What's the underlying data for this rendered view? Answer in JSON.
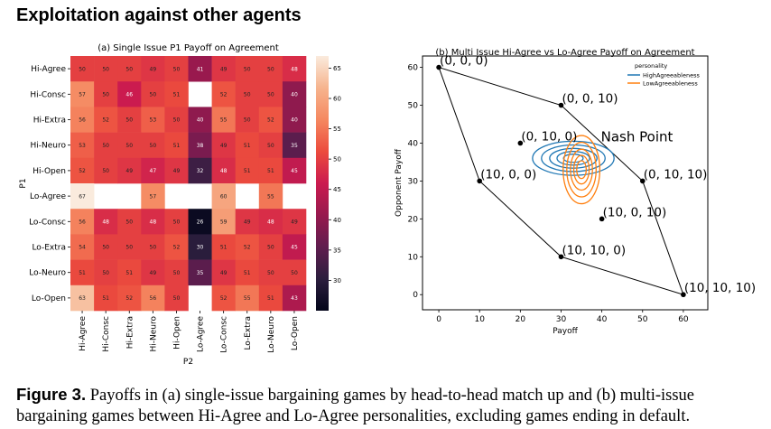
{
  "heading": "Exploitation against other agents",
  "caption": {
    "label": "Figure 3.",
    "text": "Payoffs in (a) single-issue bargaining games by head-to-head match up and (b) multi-issue bargaining games between Hi-Agree and Lo-Agree personalities, excluding games ending in default."
  },
  "chart_data": [
    {
      "type": "heatmap",
      "title": "(a) Single Issue P1 Payoff on Agreement",
      "xlabel": "P2",
      "ylabel": "P1",
      "rows": [
        "Hi-Agree",
        "Hi-Consc",
        "Hi-Extra",
        "Hi-Neuro",
        "Hi-Open",
        "Lo-Agree",
        "Lo-Consc",
        "Lo-Extra",
        "Lo-Neuro",
        "Lo-Open"
      ],
      "cols": [
        "Hi-Agree",
        "Hi-Consc",
        "Hi-Extra",
        "Hi-Neuro",
        "Hi-Open",
        "Lo-Agree",
        "Lo-Consc",
        "Lo-Extra",
        "Lo-Neuro",
        "Lo-Open"
      ],
      "values": [
        [
          50,
          50,
          50,
          49,
          50,
          41,
          49,
          50,
          50,
          48
        ],
        [
          57,
          50,
          46,
          50,
          51,
          null,
          52,
          50,
          50,
          40
        ],
        [
          56,
          52,
          50,
          53,
          50,
          40,
          55,
          50,
          52,
          40
        ],
        [
          53,
          50,
          50,
          50,
          51,
          38,
          49,
          51,
          50,
          35
        ],
        [
          52,
          50,
          49,
          47,
          49,
          32,
          48,
          51,
          51,
          45
        ],
        [
          67,
          null,
          null,
          57,
          null,
          null,
          60,
          null,
          55,
          null
        ],
        [
          56,
          48,
          50,
          48,
          50,
          26,
          59,
          49,
          48,
          49
        ],
        [
          54,
          50,
          50,
          50,
          52,
          30,
          51,
          52,
          50,
          45
        ],
        [
          51,
          50,
          51,
          49,
          50,
          35,
          49,
          51,
          50,
          50
        ],
        [
          63,
          51,
          52,
          56,
          50,
          null,
          52,
          55,
          51,
          43
        ]
      ],
      "colorbar": {
        "min": 25,
        "max": 67,
        "ticks": [
          30,
          35,
          40,
          45,
          50,
          55,
          60,
          65
        ]
      },
      "colormap": [
        "#03051a",
        "#2c1e3e",
        "#601d4f",
        "#97194e",
        "#cb1b4f",
        "#ec4b3d",
        "#f58860",
        "#f6b48e",
        "#faebdd"
      ]
    },
    {
      "type": "scatter",
      "title": "(b) Multi Issue Hi-Agree vs Lo-Agree Payoff on Agreement",
      "xlabel": "Payoff",
      "ylabel": "Opponent Payoff",
      "xlim": [
        -4,
        66
      ],
      "ylim": [
        -4,
        63
      ],
      "xticks": [
        0,
        10,
        20,
        30,
        40,
        50,
        60
      ],
      "yticks": [
        0,
        10,
        20,
        30,
        40,
        50,
        60
      ],
      "points": [
        {
          "x": 0,
          "y": 60,
          "label": "(0, 0, 0)"
        },
        {
          "x": 30,
          "y": 50,
          "label": "(0, 0, 10)"
        },
        {
          "x": 20,
          "y": 40,
          "label": "(0, 10, 0)"
        },
        {
          "x": 50,
          "y": 30,
          "label": "(0, 10, 10)"
        },
        {
          "x": 10,
          "y": 30,
          "label": "(10, 0, 0)"
        },
        {
          "x": 40,
          "y": 20,
          "label": "(10, 0, 10)"
        },
        {
          "x": 30,
          "y": 10,
          "label": "(10, 10, 0)"
        },
        {
          "x": 60,
          "y": 0,
          "label": "(10, 10, 10)"
        }
      ],
      "hull_order": [
        "(0, 0, 0)",
        "(0, 0, 10)",
        "(0, 10, 10)",
        "(10, 10, 10)",
        "(10, 10, 0)",
        "(10, 0, 0)"
      ],
      "annotation": {
        "text": "Nash Point",
        "x": 40,
        "y": 40
      },
      "legend": {
        "title": "personality",
        "position": "top-right",
        "entries": [
          {
            "name": "HighAgreeableness",
            "color": "#1f77b4"
          },
          {
            "name": "LowAgreeableness",
            "color": "#ff7f0e"
          }
        ]
      },
      "density": [
        {
          "name": "HighAgreeableness",
          "center": [
            33,
            36
          ],
          "spread": [
            10,
            4.5
          ],
          "levels": [
            1,
            0.78,
            0.58,
            0.4,
            0.24
          ]
        },
        {
          "name": "LowAgreeableness",
          "center": [
            35,
            33
          ],
          "spread": [
            4.5,
            9
          ],
          "levels": [
            1,
            0.8,
            0.6,
            0.42,
            0.26
          ]
        }
      ]
    }
  ]
}
